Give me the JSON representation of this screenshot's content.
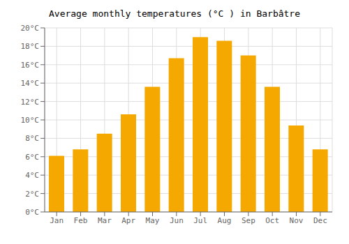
{
  "chart_data": {
    "type": "bar",
    "title": "Average monthly temperatures (°C ) in Barbâtre",
    "categories": [
      "Jan",
      "Feb",
      "Mar",
      "Apr",
      "May",
      "Jun",
      "Jul",
      "Aug",
      "Sep",
      "Oct",
      "Nov",
      "Dec"
    ],
    "values": [
      6.1,
      6.8,
      8.5,
      10.6,
      13.6,
      16.7,
      19.0,
      18.6,
      17.0,
      13.6,
      9.4,
      6.8
    ],
    "color": "#F5A800",
    "ylim": [
      0,
      20
    ],
    "yticks": [
      {
        "value": 0,
        "label": "0°C"
      },
      {
        "value": 2,
        "label": "2°C"
      },
      {
        "value": 4,
        "label": "4°C"
      },
      {
        "value": 6,
        "label": "6°C"
      },
      {
        "value": 8,
        "label": "8°C"
      },
      {
        "value": 10,
        "label": "10°C"
      },
      {
        "value": 12,
        "label": "12°C"
      },
      {
        "value": 14,
        "label": "14°C"
      },
      {
        "value": 16,
        "label": "16°C"
      },
      {
        "value": 18,
        "label": "18°C"
      },
      {
        "value": 20,
        "label": "20°C"
      }
    ],
    "grid": true
  }
}
